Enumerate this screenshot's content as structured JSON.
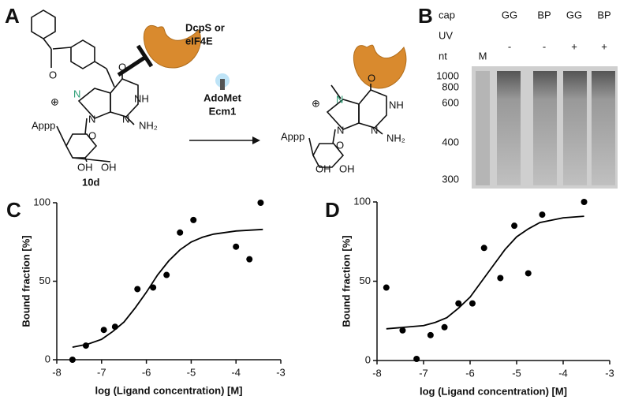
{
  "panels": {
    "a": "A",
    "b": "B",
    "c": "C",
    "d": "D"
  },
  "scheme": {
    "enzyme_lines": [
      "DcpS or",
      "eIF4E"
    ],
    "reagents": [
      "AdoMet",
      "Ecm1"
    ],
    "compound": "10d",
    "left_atoms": [
      "O",
      "⊕",
      "N",
      "O",
      "NH",
      "N",
      "NH₂",
      "N",
      "Appp",
      "O",
      "OH",
      "OH"
    ],
    "right_atoms": [
      "⊕",
      "N",
      "O",
      "NH",
      "N",
      "NH₂",
      "N",
      "Appp",
      "O",
      "OH",
      "OH"
    ]
  },
  "gel": {
    "row_labels": [
      "cap",
      "UV",
      "nt"
    ],
    "caps": [
      "GG",
      "BP",
      "GG",
      "BP"
    ],
    "uv": [
      "-",
      "-",
      "+",
      "+"
    ],
    "marker": "M",
    "sizes": [
      "1000",
      "800",
      "600",
      "400",
      "300"
    ]
  },
  "chart_data": [
    {
      "type": "scatter",
      "color": "#000000",
      "xlabel": "log (Ligand concentration) [M]",
      "ylabel": "Bound fraction [%]",
      "x": [
        -7.65,
        -7.35,
        -6.95,
        -6.7,
        -6.2,
        -5.85,
        -5.55,
        -5.25,
        -4.95,
        -4.0,
        -3.7,
        -3.45
      ],
      "values": [
        0,
        9,
        19,
        21,
        45,
        46,
        54,
        81,
        89,
        72,
        64,
        100
      ],
      "fit": {
        "x": [
          -7.65,
          -7.3,
          -7,
          -6.75,
          -6.5,
          -6.25,
          -6,
          -5.75,
          -5.5,
          -5.25,
          -5,
          -4.75,
          -4.5,
          -4,
          -3.4
        ],
        "values": [
          8,
          10,
          13,
          18,
          24,
          33,
          43,
          54,
          63,
          70,
          75,
          78,
          80,
          82,
          83
        ]
      },
      "xlim": [
        -8,
        -3
      ],
      "ylim": [
        0,
        100
      ],
      "xticks": [
        -8,
        -7,
        -6,
        -5,
        -4,
        -3
      ],
      "yticks": [
        0,
        50,
        100
      ]
    },
    {
      "type": "scatter",
      "color": "#000000",
      "xlabel": "log (Ligand concentration) [M]",
      "ylabel": "Bound fraction [%]",
      "x": [
        -7.8,
        -7.45,
        -7.15,
        -6.85,
        -6.55,
        -6.25,
        -5.95,
        -5.7,
        -5.35,
        -5.05,
        -4.75,
        -4.45,
        -3.55
      ],
      "values": [
        46,
        19,
        1,
        16,
        21,
        36,
        36,
        71,
        52,
        85,
        55,
        92,
        100
      ],
      "fit": {
        "x": [
          -7.8,
          -7.4,
          -7,
          -6.75,
          -6.5,
          -6.25,
          -6,
          -5.75,
          -5.5,
          -5.25,
          -5,
          -4.75,
          -4.5,
          -4,
          -3.55
        ],
        "values": [
          20,
          21,
          22,
          24,
          27,
          33,
          40,
          50,
          60,
          70,
          78,
          83,
          87,
          90,
          91
        ]
      },
      "xlim": [
        -8,
        -3
      ],
      "ylim": [
        0,
        100
      ],
      "xticks": [
        -8,
        -7,
        -6,
        -5,
        -4,
        -3
      ],
      "yticks": [
        0,
        50,
        100
      ]
    }
  ]
}
